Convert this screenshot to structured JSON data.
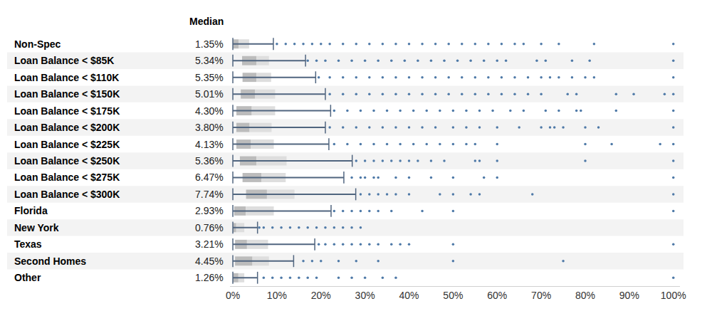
{
  "chart_data": {
    "type": "box",
    "orientation": "horizontal",
    "grid": false,
    "median_header": "Median",
    "categories": [
      "Non-Spec",
      "Loan Balance < $85K",
      "Loan Balance < $110K",
      "Loan Balance < $150K",
      "Loan Balance < $175K",
      "Loan Balance < $200K",
      "Loan Balance < $225K",
      "Loan Balance < $250K",
      "Loan Balance < $275K",
      "Loan Balance < $300K",
      "Florida",
      "New York",
      "Texas",
      "Second Homes",
      "Other"
    ],
    "median": [
      1.35,
      5.34,
      5.35,
      5.01,
      4.3,
      3.8,
      4.13,
      5.36,
      6.47,
      7.74,
      2.93,
      0.76,
      3.21,
      4.45,
      1.26
    ],
    "median_labels": [
      "1.35%",
      "5.34%",
      "5.35%",
      "5.01%",
      "4.30%",
      "3.80%",
      "4.13%",
      "5.36%",
      "6.47%",
      "7.74%",
      "2.93%",
      "0.76%",
      "3.21%",
      "4.45%",
      "1.26%"
    ],
    "q1": [
      0.0,
      2.1,
      2.2,
      1.8,
      0.8,
      0.8,
      0.8,
      1.6,
      2.2,
      3.0,
      0.3,
      0.0,
      0.5,
      0.5,
      0.0
    ],
    "q3": [
      3.7,
      8.2,
      8.7,
      9.6,
      9.6,
      8.8,
      9.3,
      12.2,
      12.0,
      14.0,
      9.3,
      2.6,
      8.0,
      8.2,
      2.6
    ],
    "lower_whisker": [
      0,
      0,
      0,
      0,
      0,
      0,
      0,
      0,
      0,
      0,
      0,
      0,
      0,
      0,
      0
    ],
    "upper_whisker": [
      9.2,
      16.5,
      18.8,
      21.0,
      22.2,
      21.0,
      21.8,
      27.1,
      25.2,
      27.9,
      22.3,
      5.6,
      18.6,
      13.8,
      5.6
    ],
    "outliers": [
      [
        10,
        12,
        14,
        16,
        18,
        20,
        22,
        25,
        28,
        31,
        34,
        37,
        40,
        43,
        46,
        49,
        52,
        55,
        58,
        61,
        64,
        66,
        70,
        74,
        82,
        100
      ],
      [
        17,
        19,
        21,
        24,
        27,
        30,
        33,
        36,
        39,
        42,
        45,
        48,
        51,
        54,
        57,
        60,
        62,
        69,
        71,
        77,
        81,
        100
      ],
      [
        19.5,
        22,
        25,
        28,
        31,
        34,
        37,
        40,
        43,
        46,
        49,
        52,
        55,
        58,
        61,
        64,
        67,
        70,
        72,
        74,
        77,
        80,
        82,
        100
      ],
      [
        22,
        25,
        28,
        31,
        34,
        37,
        40,
        43,
        46,
        49,
        52,
        55,
        58,
        61,
        64,
        67,
        70,
        76,
        78,
        87,
        91,
        98,
        100
      ],
      [
        23,
        26,
        29,
        32,
        35,
        38,
        41,
        44,
        47,
        50,
        53,
        56,
        59,
        63,
        66,
        71,
        74,
        78,
        79,
        87,
        100
      ],
      [
        22,
        25,
        28,
        31,
        34,
        37,
        40,
        43,
        46,
        50,
        53,
        56,
        60,
        65,
        70,
        72,
        73,
        75,
        80,
        83,
        100
      ],
      [
        23,
        26,
        29,
        32,
        35,
        38,
        41,
        44,
        47,
        50,
        53,
        55,
        60,
        80,
        86,
        97,
        100
      ],
      [
        28,
        30,
        32,
        34,
        36,
        38,
        40,
        42,
        45,
        48,
        55,
        56,
        60,
        80,
        100
      ],
      [
        27,
        29,
        30,
        32,
        33,
        37,
        40,
        45,
        50,
        57,
        60,
        100
      ],
      [
        29,
        31,
        33,
        35,
        37,
        40,
        47,
        50,
        54,
        56,
        68,
        100
      ],
      [
        23,
        25,
        27,
        29,
        31,
        33,
        36,
        43,
        50,
        100
      ],
      [
        6,
        7,
        9,
        11,
        13,
        15,
        17,
        19,
        21,
        23,
        25,
        27,
        29
      ],
      [
        19.5,
        21,
        23,
        25,
        27,
        29,
        31,
        33,
        36,
        38,
        40,
        50,
        100
      ],
      [
        16,
        18,
        20,
        24,
        28,
        33,
        50,
        75
      ],
      [
        7,
        9,
        11,
        13,
        15,
        17,
        19,
        24,
        27,
        30,
        34,
        37,
        100
      ]
    ],
    "xlim": [
      -0.65,
      101.5
    ],
    "xticks": [
      {
        "value": 0,
        "label": "0%"
      },
      {
        "value": 10,
        "label": "10%"
      },
      {
        "value": 20,
        "label": "20%"
      },
      {
        "value": 30,
        "label": "30%"
      },
      {
        "value": 40,
        "label": "40%"
      },
      {
        "value": 50,
        "label": "50%"
      },
      {
        "value": 60,
        "label": "60%"
      },
      {
        "value": 70,
        "label": "70%"
      },
      {
        "value": 80,
        "label": "80%"
      },
      {
        "value": 90,
        "label": "90%"
      },
      {
        "value": 100,
        "label": "100%"
      }
    ]
  }
}
